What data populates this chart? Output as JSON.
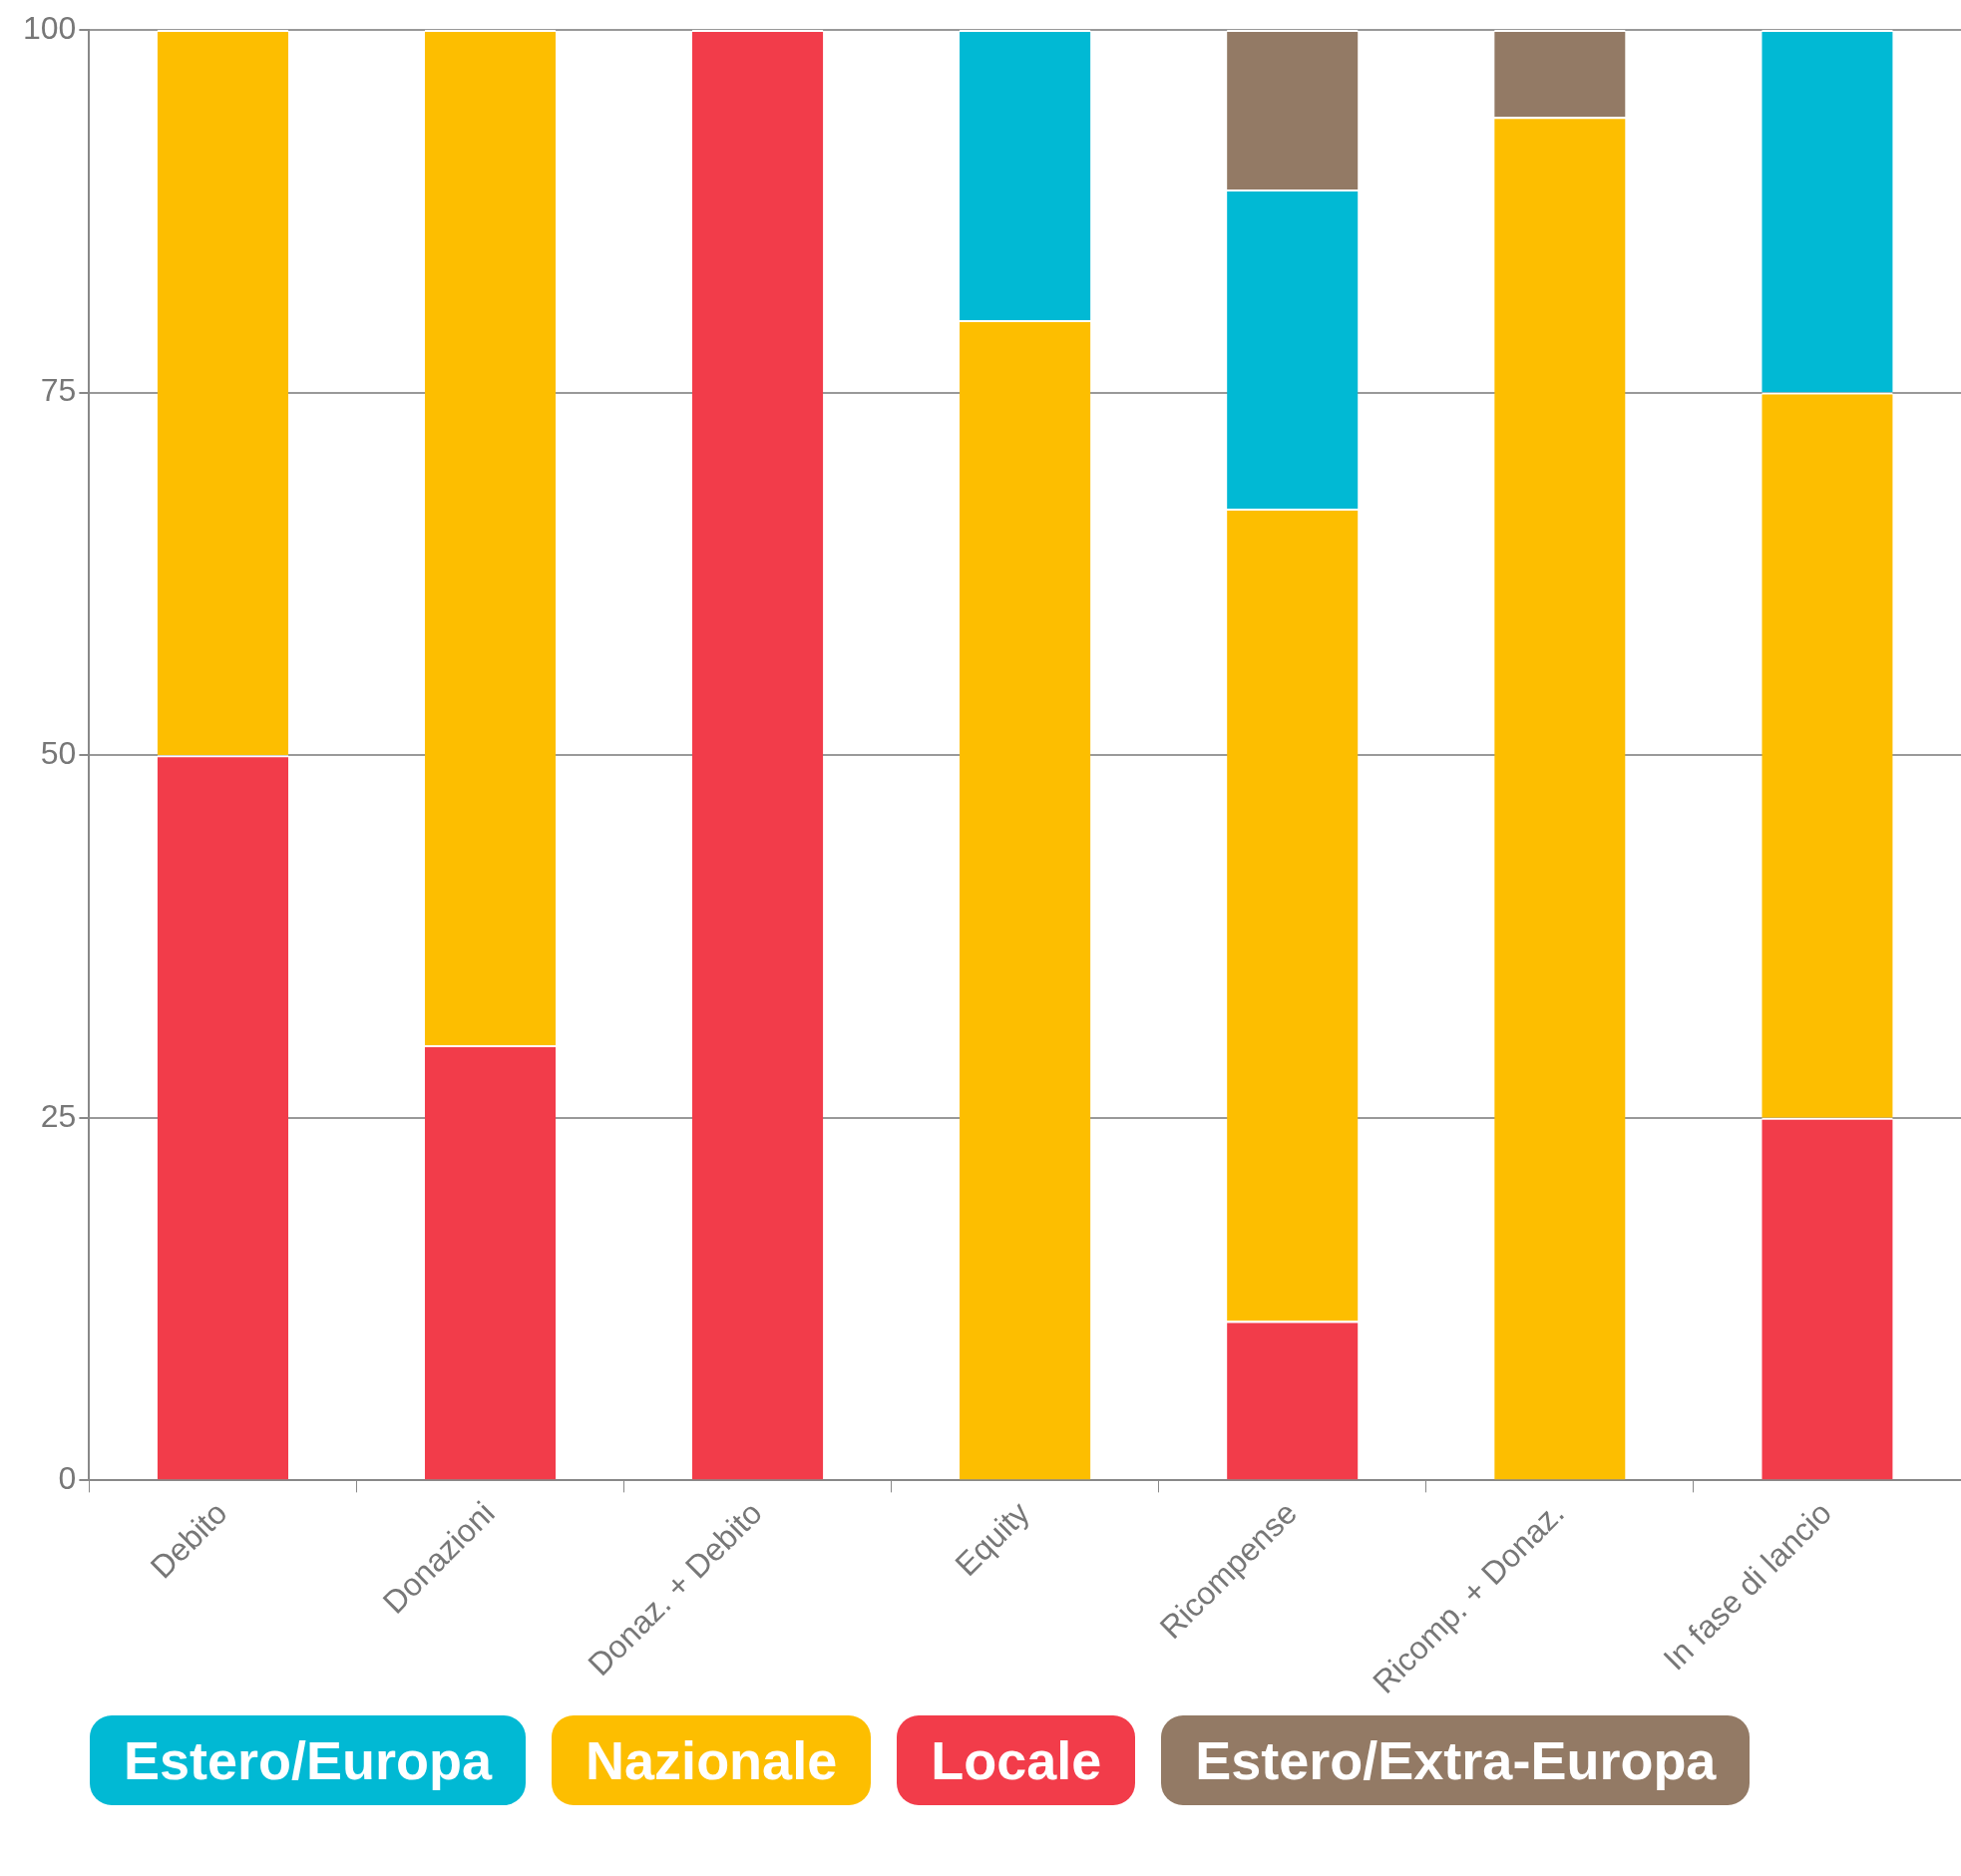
{
  "chart_data": {
    "type": "bar",
    "stacked": true,
    "categories": [
      "Debito",
      "Donazioni",
      "Donaz. + Debito",
      "Equity",
      "Ricompense",
      "Ricomp. + Donaz.",
      "In fase di lancio"
    ],
    "series": [
      {
        "name": "Locale",
        "color": "#f23c4a",
        "values": [
          50,
          30,
          100,
          0,
          11,
          0,
          25
        ]
      },
      {
        "name": "Nazionale",
        "color": "#fdbe00",
        "values": [
          50,
          70,
          0,
          80,
          56,
          94,
          50
        ]
      },
      {
        "name": "Estero/Europa",
        "color": "#01b9d4",
        "values": [
          0,
          0,
          0,
          20,
          22,
          0,
          25
        ]
      },
      {
        "name": "Estero/Extra-Europa",
        "color": "#937a65",
        "values": [
          0,
          0,
          0,
          0,
          11,
          6,
          0
        ]
      }
    ],
    "ylim": [
      0,
      100
    ],
    "yticks": [
      0,
      25,
      50,
      75,
      100
    ],
    "grid": "y",
    "legend": "bottom"
  }
}
